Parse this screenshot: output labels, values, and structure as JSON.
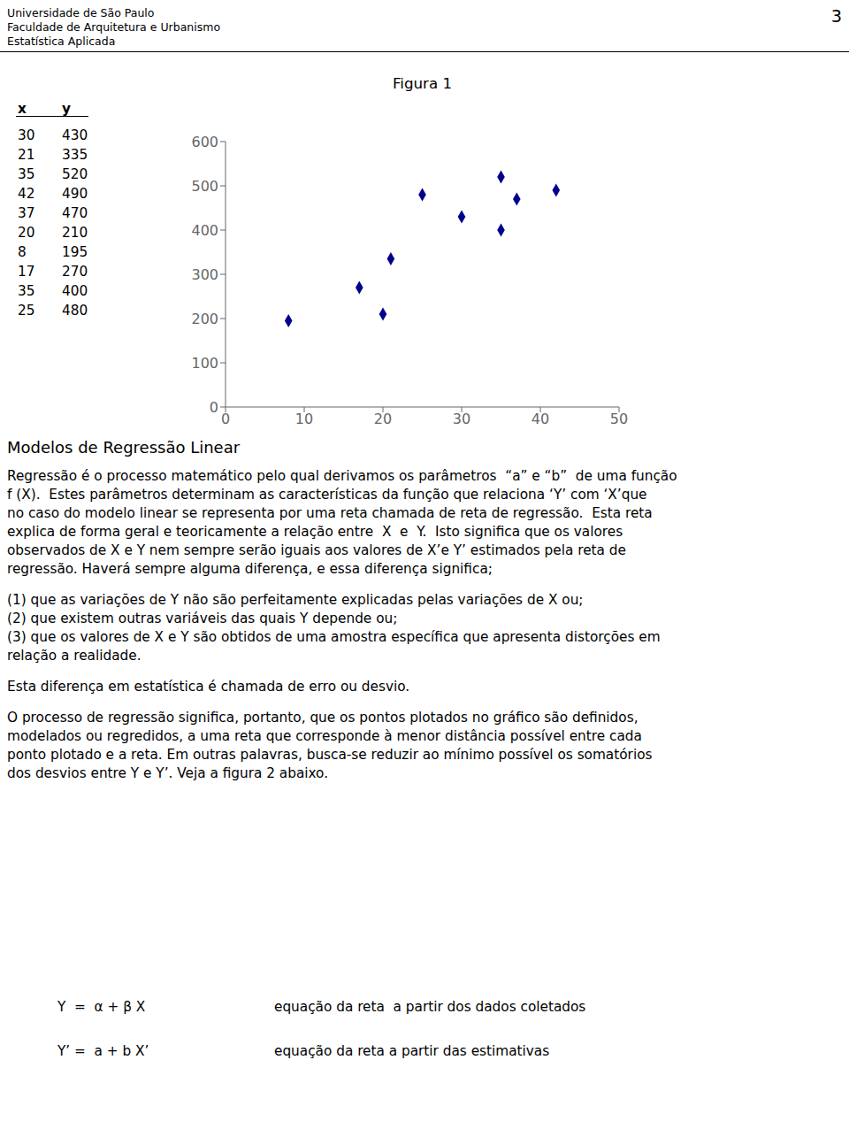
{
  "chart_data": {
    "type": "scatter",
    "title": "Figura 1",
    "x": [
      30,
      21,
      35,
      42,
      37,
      20,
      8,
      17,
      35,
      25
    ],
    "values": [
      430,
      335,
      520,
      490,
      470,
      210,
      195,
      270,
      400,
      480
    ],
    "color": "#00008B",
    "marker": "diamond",
    "xlim": [
      0,
      50
    ],
    "ylim": [
      0,
      600
    ],
    "xticks": [
      0,
      10,
      20,
      30,
      40,
      50
    ],
    "yticks": [
      0,
      100,
      200,
      300,
      400,
      500,
      600
    ],
    "grid": false,
    "annotations": [
      "Universidade de São Paulo",
      "Faculdade de Arquitetura e Urbanismo",
      "Estatística Aplicada",
      "3",
      "x",
      "y",
      "Modelos de Regressão Linear",
      "Regressão é o processo matemático pelo qual derivamos os parâmetros  “a” e “b”  de uma função",
      "f (X).  Estes parâmetros determinam as características da função que relaciona ‘Y’ com ‘X’que",
      "no caso do modelo linear se representa por uma reta chamada de reta de regressão.  Esta reta",
      "explica de forma geral e teoricamente a relação entre  X  e  Y.  Isto significa que os valores",
      "observados de X e Y nem sempre serão iguais aos valores de X’e Y’ estimados pela reta de",
      "regressão. Haverá sempre alguma diferença, e essa diferença significa;",
      "(1) que as variações de Y não são perfeitamente explicadas pelas variações de X ou;",
      "(2) que existem outras variáveis das quais Y depende ou;",
      "(3) que os valores de X e Y são obtidos de uma amostra específica que apresenta distorções em",
      "relação a realidade.",
      "Esta diferença em estatística é chamada de erro ou desvio.",
      "O processo de regressão significa, portanto, que os pontos plotados no gráfico são definidos,",
      "modelados ou regredidos, a uma reta que corresponde à menor distância possível entre cada",
      "ponto plotado e a reta. Em outras palavras, busca-se reduzir ao mínimo possível os somatórios",
      "dos desvios entre Y e Y’. Veja a figura 2 abaixo.",
      "Y  =  α + β X",
      "equação da reta  a partir dos dados coletados",
      "Y’ =  a + b X’",
      "equação da reta a partir das estimativas"
    ]
  }
}
